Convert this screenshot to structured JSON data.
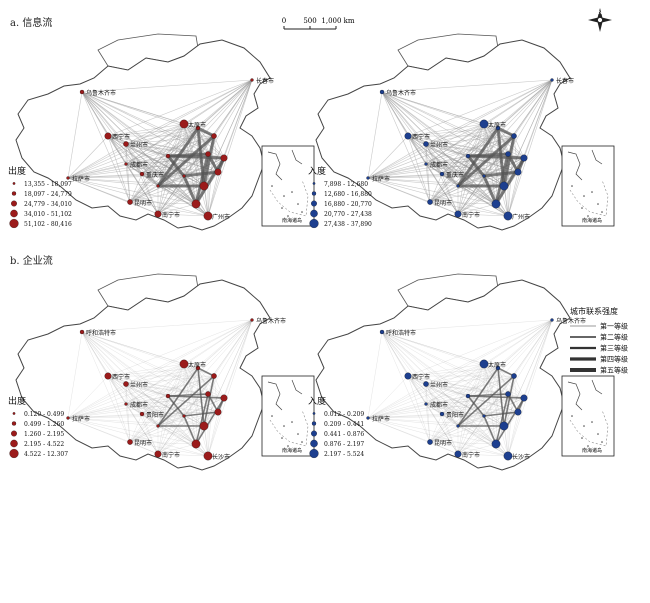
{
  "sections": {
    "a": "a. 信息流",
    "b": "b. 企业流"
  },
  "scalebar": {
    "ticks": [
      "0",
      "500",
      "1,000 km"
    ]
  },
  "compass": {
    "letter": "N"
  },
  "panels": [
    {
      "id": "a-out",
      "color": "#9b1b1b",
      "legend_title": "出度",
      "legend_items": [
        "13,355 - 18,097",
        "18,097 - 24,779",
        "24,779 - 34,010",
        "34,010 - 51,102",
        "51,102 - 80,416"
      ],
      "cities": [
        "长春市",
        "乌鲁木齐市",
        "兰州市",
        "西宁市",
        "太原市",
        "成都市",
        "重庆市",
        "昆明市",
        "南宁市",
        "广州市",
        "拉萨市"
      ],
      "line_weight": "heavy"
    },
    {
      "id": "a-in",
      "color": "#1d3f8f",
      "legend_title": "入度",
      "legend_items": [
        "7,898 - 12,680",
        "12,680 - 16,880",
        "16,880 - 20,770",
        "20,770 - 27,438",
        "27,438 - 37,890"
      ],
      "cities": [
        "长春市",
        "乌鲁木齐市",
        "兰州市",
        "西宁市",
        "太原市",
        "成都市",
        "重庆市",
        "昆明市",
        "南宁市",
        "广州市",
        "拉萨市"
      ],
      "line_weight": "heavy"
    },
    {
      "id": "b-out",
      "color": "#9b1b1b",
      "legend_title": "出度",
      "legend_items": [
        "0.120 - 0.499",
        "0.499 - 1.260",
        "1.260 - 2.195",
        "2.195 - 4.522",
        "4.522 - 12.307"
      ],
      "cities": [
        "乌鲁木齐市",
        "呼和浩特市",
        "兰州市",
        "西宁市",
        "太原市",
        "成都市",
        "贵阳市",
        "昆明市",
        "南宁市",
        "长沙市",
        "拉萨市"
      ],
      "line_weight": "light"
    },
    {
      "id": "b-in",
      "color": "#1d3f8f",
      "legend_title": "入度",
      "legend_items": [
        "0.012 - 0.209",
        "0.209 - 0.441",
        "0.441 - 0.876",
        "0.876 - 2.197",
        "2.197 - 5.524"
      ],
      "cities": [
        "乌鲁木齐市",
        "呼和浩特市",
        "兰州市",
        "西宁市",
        "太原市",
        "成都市",
        "贵阳市",
        "昆明市",
        "南宁市",
        "长沙市",
        "拉萨市"
      ],
      "line_weight": "light"
    }
  ],
  "inset": {
    "label": "南海诸岛"
  },
  "strength_legend": {
    "title": "城市联系强度",
    "items": [
      "第一等级",
      "第二等级",
      "第三等级",
      "第四等级",
      "第五等级"
    ]
  }
}
